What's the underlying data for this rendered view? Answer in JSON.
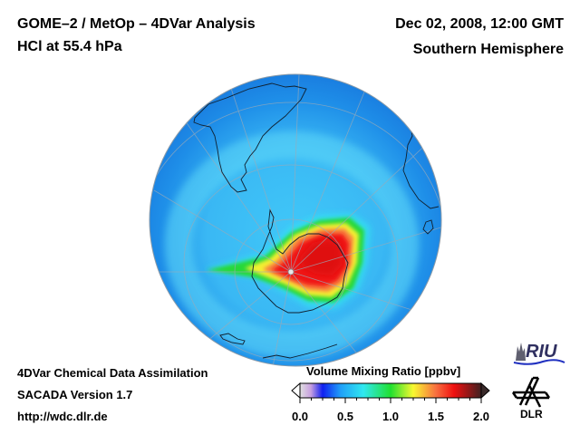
{
  "header": {
    "title_line1": "GOME–2 / MetOp – 4DVar Analysis",
    "title_line2": "HCl at 55.4 hPa",
    "date": "Dec 02, 2008, 12:00 GMT",
    "region": "Southern Hemisphere"
  },
  "footer": {
    "line1": "4DVar Chemical Data Assimilation",
    "line2": "SACADA Version 1.7",
    "line3": "http://wdc.dlr.de"
  },
  "colorbar": {
    "title": "Volume Mixing Ratio [ppbv]",
    "min": 0.0,
    "max": 2.0,
    "tick_labels": [
      "0.0",
      "0.5",
      "1.0",
      "1.5",
      "2.0"
    ],
    "tick_values": [
      0.0,
      0.5,
      1.0,
      1.5,
      2.0
    ],
    "minor_tick_step": 0.125,
    "stops": [
      {
        "v": 0.0,
        "color": "#e0e0e0"
      },
      {
        "v": 0.12,
        "color": "#c8a0e0"
      },
      {
        "v": 0.25,
        "color": "#1020f0"
      },
      {
        "v": 0.45,
        "color": "#20a0f8"
      },
      {
        "v": 0.7,
        "color": "#30e8f0"
      },
      {
        "v": 1.0,
        "color": "#20e030"
      },
      {
        "v": 1.25,
        "color": "#f8f830"
      },
      {
        "v": 1.5,
        "color": "#f87040"
      },
      {
        "v": 1.7,
        "color": "#f01010"
      },
      {
        "v": 2.0,
        "color": "#402020"
      }
    ],
    "under_color": "#ffffff",
    "over_color": "#3a2a2a"
  },
  "map": {
    "projection": "orthographic",
    "hemisphere": "south",
    "background_value_ppbv": 0.45,
    "vortex_peak_value_ppbv": 1.8,
    "features": [
      "South America",
      "Antarctica",
      "Africa",
      "Antarctic Peninsula"
    ]
  },
  "logos": {
    "riu_label": "RIU",
    "dlr_label": "DLR"
  }
}
